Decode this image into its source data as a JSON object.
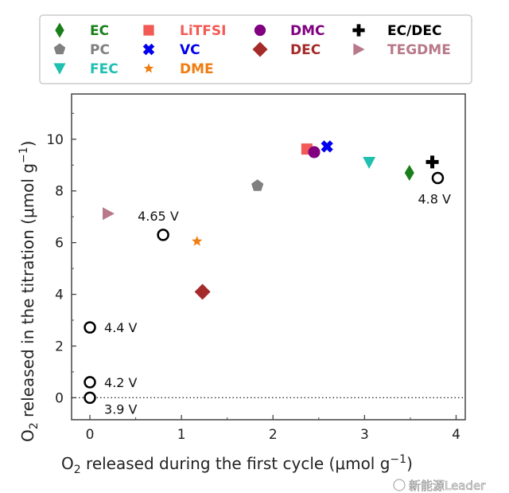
{
  "chart_data": {
    "type": "scatter",
    "xlabel": "O2 released during the first cycle (μmol g−1)",
    "xlabel_parts": {
      "main": "O",
      "sub": "2",
      "rest": " released during the first cycle (μmol g",
      "sup": "−1",
      "end": ")"
    },
    "ylabel": "O2 released in the titration (μmol g−1)",
    "ylabel_parts": {
      "main": "O",
      "sub": "2",
      "rest": " released in the titration (μmol g",
      "sup": "−1",
      "end": ")"
    },
    "xlim": [
      -0.2,
      4.1
    ],
    "ylim": [
      -0.85,
      11.75
    ],
    "xticks": [
      "0",
      "1",
      "2",
      "3",
      "4"
    ],
    "xtick_values": [
      0,
      1,
      2,
      3,
      4
    ],
    "yticks": [
      "0",
      "2",
      "4",
      "6",
      "8",
      "10"
    ],
    "ytick_values": [
      0,
      2,
      4,
      6,
      8,
      10
    ],
    "reference_line": {
      "y": 0,
      "style": "dotted"
    },
    "series": [
      {
        "name": "EC",
        "marker": "thin-diamond",
        "color": "#1a7f1a",
        "x": 3.49,
        "y": 8.7
      },
      {
        "name": "PC",
        "marker": "pentagon",
        "color": "#808080",
        "x": 1.83,
        "y": 8.2
      },
      {
        "name": "FEC",
        "marker": "triangle-down",
        "color": "#20c0b0",
        "x": 3.05,
        "y": 9.1
      },
      {
        "name": "LiTFSI",
        "marker": "square",
        "color": "#f25a55",
        "x": 2.37,
        "y": 9.62
      },
      {
        "name": "VC",
        "marker": "x-filled",
        "color": "#0000ee",
        "x": 2.59,
        "y": 9.72
      },
      {
        "name": "DME",
        "marker": "star",
        "color": "#f07d12",
        "x": 1.17,
        "y": 6.05
      },
      {
        "name": "DMC",
        "marker": "circle",
        "color": "#800080",
        "x": 2.45,
        "y": 9.5
      },
      {
        "name": "DEC",
        "marker": "diamond",
        "color": "#a52a2a",
        "x": 1.23,
        "y": 4.1
      },
      {
        "name": "EC/DEC",
        "marker": "plus-filled",
        "color": "#000000",
        "x": 3.74,
        "y": 9.12
      },
      {
        "name": "TEGDME",
        "marker": "triangle-right",
        "color": "#b8788a",
        "x": 0.2,
        "y": 7.12
      }
    ],
    "open_points": [
      {
        "label": "3.9 V",
        "x": 0,
        "y": 0
      },
      {
        "label": "4.2 V",
        "x": 0,
        "y": 0.6
      },
      {
        "label": "4.4 V",
        "x": 0,
        "y": 2.72
      },
      {
        "label": "4.65 V",
        "x": 0.8,
        "y": 6.3
      },
      {
        "label": "4.8 V",
        "x": 3.8,
        "y": 8.5
      }
    ],
    "legend": {
      "placement": "top",
      "columns": 4
    }
  },
  "watermark": "新能源Leader"
}
